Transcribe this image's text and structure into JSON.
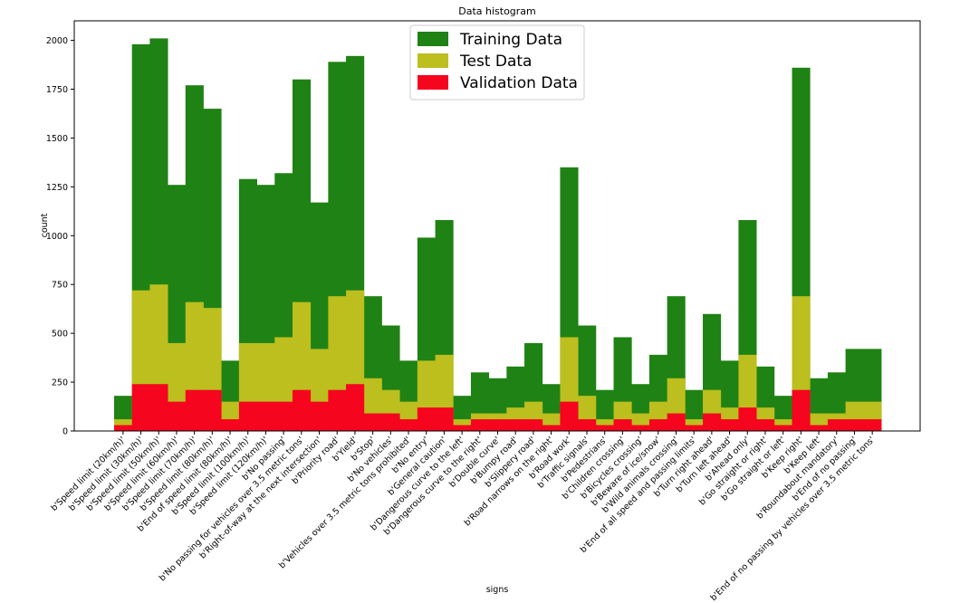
{
  "chart_data": {
    "type": "bar",
    "stacking": "overlay",
    "title": "Data histogram",
    "xlabel": "signs",
    "ylabel": "count",
    "ylim": [
      0,
      2100
    ],
    "yticks": [
      0,
      250,
      500,
      750,
      1000,
      1250,
      1500,
      1750,
      2000
    ],
    "legend_position": "top-center",
    "categories": [
      "b'Speed limit (20km/h)'",
      "b'Speed limit (30km/h)'",
      "b'Speed limit (50km/h)'",
      "b'Speed limit (60km/h)'",
      "b'Speed limit (70km/h)'",
      "b'Speed limit (80km/h)'",
      "b'End of speed limit (80km/h)'",
      "b'Speed limit (100km/h)'",
      "b'Speed limit (120km/h)'",
      "b'No passing'",
      "b'No passing for vehicles over 3.5 metric tons'",
      "b'Right-of-way at the next intersection'",
      "b'Priority road'",
      "b'Yield'",
      "b'Stop'",
      "b'No vehicles'",
      "b'Vehicles over 3.5 metric tons prohibited'",
      "b'No entry'",
      "b'General caution'",
      "b'Dangerous curve to the left'",
      "b'Dangerous curve to the right'",
      "b'Double curve'",
      "b'Bumpy road'",
      "b'Slippery road'",
      "b'Road narrows on the right'",
      "b'Road work'",
      "b'Traffic signals'",
      "b'Pedestrians'",
      "b'Children crossing'",
      "b'Bicycles crossing'",
      "b'Beware of ice/snow'",
      "b'Wild animals crossing'",
      "b'End of all speed and passing limits'",
      "b'Turn right ahead'",
      "b'Turn left ahead'",
      "b'Ahead only'",
      "b'Go straight or right'",
      "b'Go straight or left'",
      "b'Keep right'",
      "b'Keep left'",
      "b'Roundabout mandatory'",
      "b'End of no passing'",
      "b'End of no passing by vehicles over 3.5 metric tons'"
    ],
    "series": [
      {
        "name": "Training Data",
        "color": "#1f8214",
        "values": [
          180,
          1980,
          2010,
          1260,
          1770,
          1650,
          360,
          1290,
          1260,
          1320,
          1800,
          1170,
          1890,
          1920,
          690,
          540,
          360,
          990,
          1080,
          180,
          300,
          270,
          330,
          450,
          240,
          1350,
          540,
          210,
          480,
          240,
          390,
          690,
          210,
          599,
          360,
          1080,
          330,
          180,
          1860,
          270,
          300,
          420,
          420
        ]
      },
      {
        "name": "Test Data",
        "color": "#bcbf1e",
        "values": [
          60,
          720,
          750,
          450,
          660,
          630,
          150,
          450,
          450,
          480,
          660,
          420,
          690,
          720,
          270,
          210,
          150,
          360,
          390,
          60,
          90,
          90,
          120,
          150,
          90,
          480,
          180,
          60,
          150,
          90,
          150,
          270,
          60,
          210,
          120,
          390,
          120,
          60,
          690,
          90,
          90,
          150,
          150
        ]
      },
      {
        "name": "Validation Data",
        "color": "#f5051e",
        "values": [
          30,
          240,
          240,
          150,
          210,
          210,
          60,
          150,
          150,
          150,
          210,
          150,
          210,
          240,
          90,
          90,
          60,
          120,
          120,
          30,
          60,
          60,
          60,
          60,
          30,
          150,
          60,
          30,
          60,
          30,
          60,
          90,
          30,
          90,
          60,
          120,
          60,
          30,
          210,
          30,
          60,
          60,
          60
        ]
      }
    ]
  }
}
